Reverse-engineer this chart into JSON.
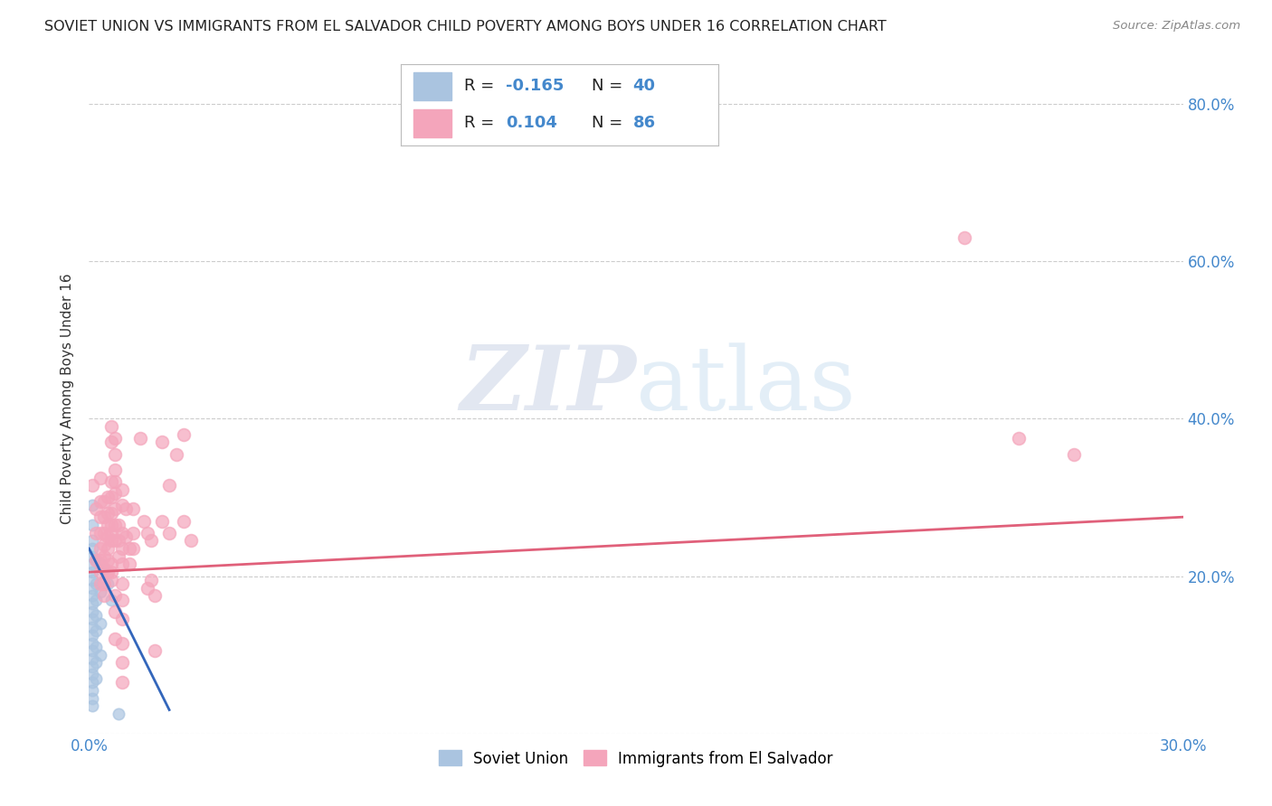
{
  "title": "SOVIET UNION VS IMMIGRANTS FROM EL SALVADOR CHILD POVERTY AMONG BOYS UNDER 16 CORRELATION CHART",
  "source": "Source: ZipAtlas.com",
  "ylabel": "Child Poverty Among Boys Under 16",
  "xmin": 0.0,
  "xmax": 0.3,
  "ymin": 0.0,
  "ymax": 0.85,
  "yticks": [
    0.0,
    0.2,
    0.4,
    0.6,
    0.8
  ],
  "xticks": [
    0.0,
    0.05,
    0.1,
    0.15,
    0.2,
    0.25,
    0.3
  ],
  "xtick_labels": [
    "0.0%",
    "",
    "",
    "",
    "",
    "",
    "30.0%"
  ],
  "ytick_labels": [
    "",
    "20.0%",
    "40.0%",
    "60.0%",
    "80.0%"
  ],
  "watermark_zip": "ZIP",
  "watermark_atlas": "atlas",
  "soviet_color": "#aac4e0",
  "salvador_color": "#f4a5bb",
  "soviet_line_color": "#3366bb",
  "salvador_line_color": "#e0607a",
  "soviet_trend_line": {
    "x0": 0.0,
    "y0": 0.235,
    "x1": 0.022,
    "y1": 0.03
  },
  "salvador_trend_line": {
    "x0": 0.0,
    "y0": 0.205,
    "x1": 0.3,
    "y1": 0.275
  },
  "soviet_points": [
    [
      0.001,
      0.29
    ],
    [
      0.001,
      0.265
    ],
    [
      0.001,
      0.245
    ],
    [
      0.001,
      0.235
    ],
    [
      0.001,
      0.225
    ],
    [
      0.001,
      0.215
    ],
    [
      0.001,
      0.205
    ],
    [
      0.001,
      0.195
    ],
    [
      0.001,
      0.185
    ],
    [
      0.001,
      0.175
    ],
    [
      0.001,
      0.165
    ],
    [
      0.001,
      0.155
    ],
    [
      0.001,
      0.145
    ],
    [
      0.001,
      0.135
    ],
    [
      0.001,
      0.125
    ],
    [
      0.001,
      0.115
    ],
    [
      0.001,
      0.105
    ],
    [
      0.001,
      0.095
    ],
    [
      0.001,
      0.085
    ],
    [
      0.001,
      0.075
    ],
    [
      0.001,
      0.065
    ],
    [
      0.001,
      0.055
    ],
    [
      0.001,
      0.045
    ],
    [
      0.001,
      0.035
    ],
    [
      0.002,
      0.22
    ],
    [
      0.002,
      0.19
    ],
    [
      0.002,
      0.17
    ],
    [
      0.002,
      0.15
    ],
    [
      0.002,
      0.13
    ],
    [
      0.002,
      0.11
    ],
    [
      0.002,
      0.09
    ],
    [
      0.002,
      0.07
    ],
    [
      0.003,
      0.215
    ],
    [
      0.003,
      0.18
    ],
    [
      0.003,
      0.14
    ],
    [
      0.003,
      0.1
    ],
    [
      0.004,
      0.21
    ],
    [
      0.005,
      0.19
    ],
    [
      0.006,
      0.17
    ],
    [
      0.008,
      0.025
    ]
  ],
  "salvador_points": [
    [
      0.001,
      0.315
    ],
    [
      0.002,
      0.285
    ],
    [
      0.002,
      0.255
    ],
    [
      0.002,
      0.22
    ],
    [
      0.003,
      0.325
    ],
    [
      0.003,
      0.295
    ],
    [
      0.003,
      0.275
    ],
    [
      0.003,
      0.255
    ],
    [
      0.003,
      0.235
    ],
    [
      0.003,
      0.22
    ],
    [
      0.003,
      0.205
    ],
    [
      0.003,
      0.19
    ],
    [
      0.004,
      0.295
    ],
    [
      0.004,
      0.275
    ],
    [
      0.004,
      0.255
    ],
    [
      0.004,
      0.24
    ],
    [
      0.004,
      0.225
    ],
    [
      0.004,
      0.21
    ],
    [
      0.004,
      0.19
    ],
    [
      0.004,
      0.175
    ],
    [
      0.005,
      0.3
    ],
    [
      0.005,
      0.28
    ],
    [
      0.005,
      0.265
    ],
    [
      0.005,
      0.25
    ],
    [
      0.005,
      0.235
    ],
    [
      0.005,
      0.22
    ],
    [
      0.005,
      0.205
    ],
    [
      0.006,
      0.39
    ],
    [
      0.006,
      0.37
    ],
    [
      0.006,
      0.32
    ],
    [
      0.006,
      0.3
    ],
    [
      0.006,
      0.28
    ],
    [
      0.006,
      0.265
    ],
    [
      0.006,
      0.255
    ],
    [
      0.006,
      0.245
    ],
    [
      0.006,
      0.215
    ],
    [
      0.006,
      0.205
    ],
    [
      0.006,
      0.195
    ],
    [
      0.007,
      0.375
    ],
    [
      0.007,
      0.355
    ],
    [
      0.007,
      0.335
    ],
    [
      0.007,
      0.32
    ],
    [
      0.007,
      0.305
    ],
    [
      0.007,
      0.285
    ],
    [
      0.007,
      0.265
    ],
    [
      0.007,
      0.245
    ],
    [
      0.007,
      0.175
    ],
    [
      0.007,
      0.155
    ],
    [
      0.007,
      0.12
    ],
    [
      0.008,
      0.265
    ],
    [
      0.008,
      0.245
    ],
    [
      0.008,
      0.225
    ],
    [
      0.009,
      0.31
    ],
    [
      0.009,
      0.29
    ],
    [
      0.009,
      0.255
    ],
    [
      0.009,
      0.235
    ],
    [
      0.009,
      0.215
    ],
    [
      0.009,
      0.19
    ],
    [
      0.009,
      0.17
    ],
    [
      0.009,
      0.145
    ],
    [
      0.009,
      0.115
    ],
    [
      0.009,
      0.09
    ],
    [
      0.009,
      0.065
    ],
    [
      0.01,
      0.285
    ],
    [
      0.01,
      0.25
    ],
    [
      0.011,
      0.235
    ],
    [
      0.011,
      0.215
    ],
    [
      0.012,
      0.285
    ],
    [
      0.012,
      0.255
    ],
    [
      0.012,
      0.235
    ],
    [
      0.014,
      0.375
    ],
    [
      0.015,
      0.27
    ],
    [
      0.016,
      0.255
    ],
    [
      0.016,
      0.185
    ],
    [
      0.017,
      0.245
    ],
    [
      0.017,
      0.195
    ],
    [
      0.018,
      0.175
    ],
    [
      0.018,
      0.105
    ],
    [
      0.02,
      0.37
    ],
    [
      0.02,
      0.27
    ],
    [
      0.022,
      0.315
    ],
    [
      0.022,
      0.255
    ],
    [
      0.024,
      0.355
    ],
    [
      0.026,
      0.38
    ],
    [
      0.026,
      0.27
    ],
    [
      0.028,
      0.245
    ],
    [
      0.24,
      0.63
    ],
    [
      0.255,
      0.375
    ],
    [
      0.27,
      0.355
    ]
  ]
}
